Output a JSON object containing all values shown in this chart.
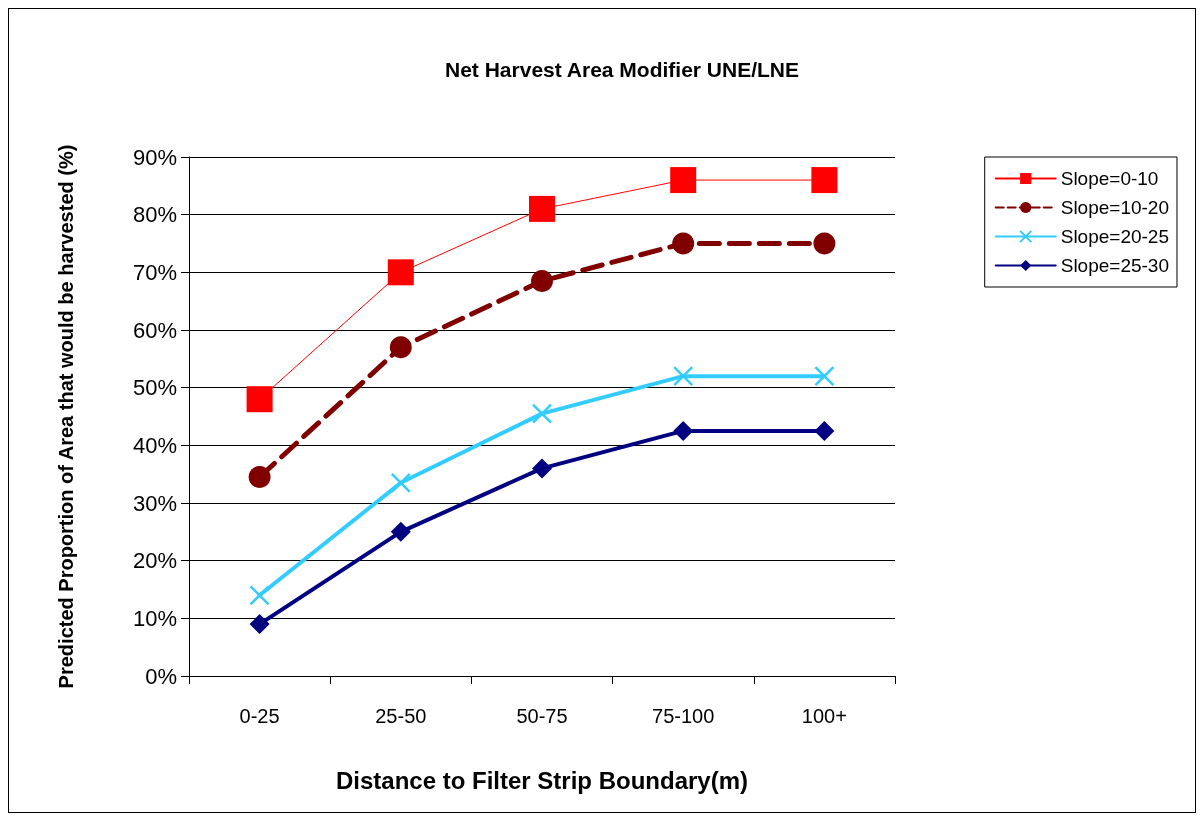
{
  "chart_data": {
    "type": "line",
    "title": "Net Harvest Area Modifier UNE/LNE",
    "xlabel": "Distance to Filter Strip Boundary(m)",
    "ylabel": "Predicted Proportion of Area that would be harvested (%)",
    "categories": [
      "0-25",
      "25-50",
      "50-75",
      "75-100",
      "100+"
    ],
    "series": [
      {
        "name": "Slope=0-10",
        "color": "#ff0000",
        "marker": "square",
        "line_style": "solid",
        "values": [
          48,
          70,
          81,
          86,
          86
        ]
      },
      {
        "name": "Slope=10-20",
        "color": "#800000",
        "marker": "circle",
        "line_style": "dashed",
        "values": [
          34.5,
          57,
          68.5,
          75,
          75
        ]
      },
      {
        "name": "Slope=20-25",
        "color": "#33ccff",
        "marker": "cross",
        "line_style": "solid",
        "values": [
          14,
          33.5,
          45.5,
          52,
          52
        ]
      },
      {
        "name": "Slope=25-30",
        "color": "#000080",
        "marker": "diamond",
        "line_style": "solid",
        "values": [
          9,
          25,
          36,
          42.5,
          42.5
        ]
      }
    ],
    "ylim": [
      0,
      90
    ],
    "yticks": [
      {
        "value": 0,
        "label": "0%"
      },
      {
        "value": 10,
        "label": "10%"
      },
      {
        "value": 20,
        "label": "20%"
      },
      {
        "value": 30,
        "label": "30%"
      },
      {
        "value": 40,
        "label": "40%"
      },
      {
        "value": 50,
        "label": "50%"
      },
      {
        "value": 60,
        "label": "60%"
      },
      {
        "value": 70,
        "label": "70%"
      },
      {
        "value": 80,
        "label": "80%"
      },
      {
        "value": 90,
        "label": "90%"
      }
    ],
    "grid": "y",
    "legend": "right"
  }
}
